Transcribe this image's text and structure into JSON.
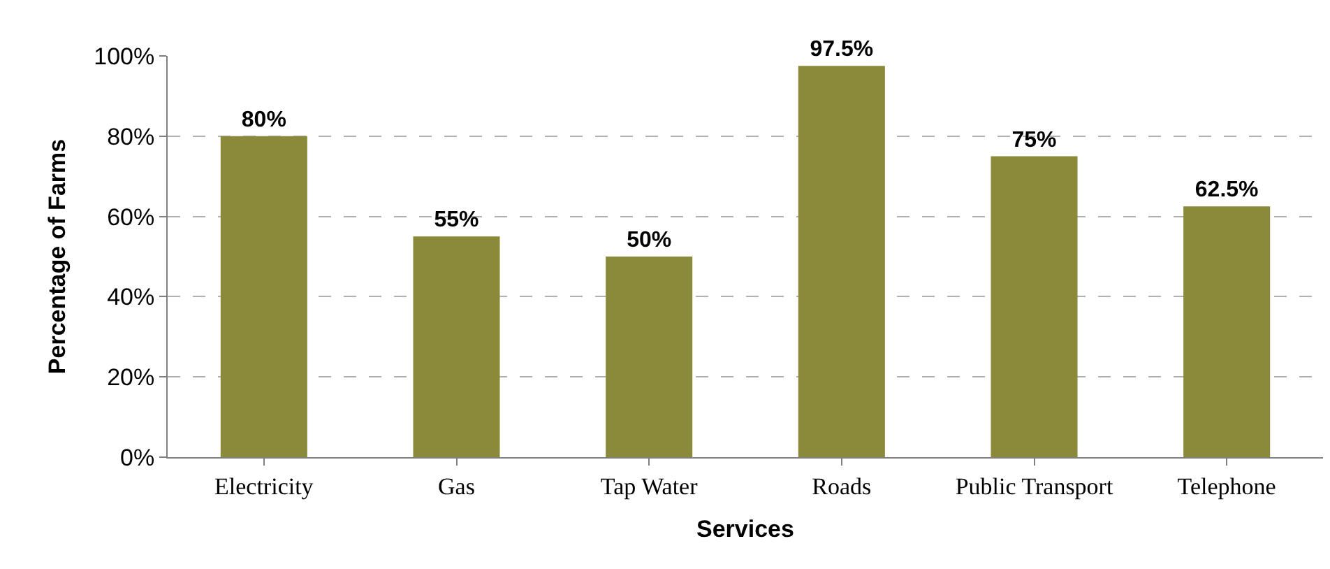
{
  "chart_data": {
    "type": "bar",
    "xlabel": "Services",
    "ylabel": "Percentage of Farms",
    "categories": [
      "Electricity",
      "Gas",
      "Tap Water",
      "Roads",
      "Public Transport",
      "Telephone"
    ],
    "values": [
      80,
      55,
      50,
      97.5,
      75,
      62.5
    ],
    "value_labels": [
      "80%",
      "55%",
      "50%",
      "97.5%",
      "75%",
      "62.5%"
    ],
    "color": "#8a8a3a",
    "ylim": [
      0,
      100
    ],
    "yticks": [
      {
        "value": 0,
        "label": "0%"
      },
      {
        "value": 20,
        "label": "20%"
      },
      {
        "value": 40,
        "label": "40%"
      },
      {
        "value": 60,
        "label": "60%"
      },
      {
        "value": 80,
        "label": "80%"
      },
      {
        "value": 100,
        "label": "100%"
      }
    ],
    "grid": "y"
  }
}
